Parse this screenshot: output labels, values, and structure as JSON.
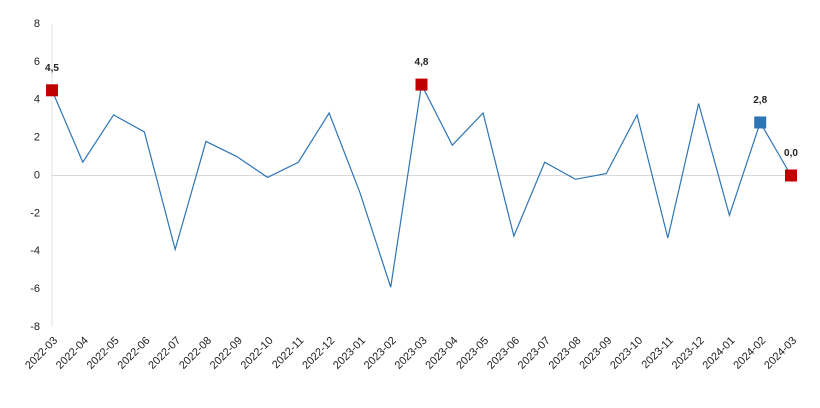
{
  "chart_data": {
    "type": "line",
    "categories": [
      "2022-03",
      "2022-04",
      "2022-05",
      "2022-06",
      "2022-07",
      "2022-08",
      "2022-09",
      "2022-10",
      "2022-11",
      "2022-12",
      "2023-01",
      "2023-02",
      "2023-03",
      "2023-04",
      "2023-05",
      "2023-06",
      "2023-07",
      "2023-08",
      "2023-09",
      "2023-10",
      "2023-11",
      "2023-12",
      "2024-01",
      "2024-02",
      "2024-03"
    ],
    "series": [
      {
        "color": "#2e75b6",
        "values": [
          4.5,
          0.7,
          3.2,
          2.3,
          -3.9,
          1.8,
          1.0,
          -0.1,
          0.7,
          3.3,
          -0.9,
          -5.9,
          4.8,
          1.6,
          3.3,
          -3.2,
          0.7,
          -0.2,
          0.1,
          3.2,
          -3.3,
          3.8,
          -2.1,
          2.8,
          0.0
        ],
        "value_labels": [
          "4,5",
          null,
          null,
          null,
          null,
          null,
          null,
          null,
          null,
          null,
          null,
          null,
          "4,8",
          null,
          null,
          null,
          null,
          null,
          null,
          null,
          null,
          null,
          null,
          "2,8",
          "0,0"
        ],
        "marker_colors": [
          "#c00000",
          null,
          null,
          null,
          null,
          null,
          null,
          null,
          null,
          null,
          null,
          null,
          "#c00000",
          null,
          null,
          null,
          null,
          null,
          null,
          null,
          null,
          null,
          null,
          "#2e75b6",
          "#c00000"
        ]
      }
    ],
    "ylim": [
      -8,
      8
    ],
    "yticks": [
      -8,
      -6,
      -4,
      -2,
      0,
      2,
      4,
      6,
      8
    ],
    "zero_line": true,
    "grid": false
  }
}
